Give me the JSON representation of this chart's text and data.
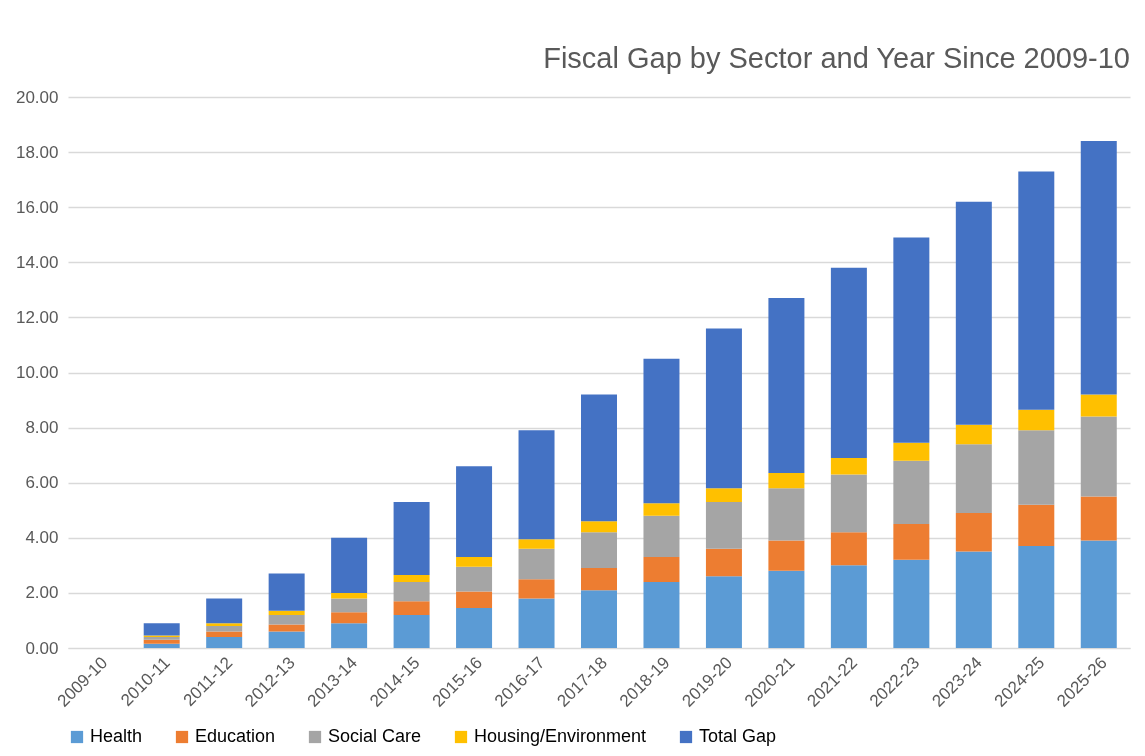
{
  "chart_data": {
    "type": "bar",
    "title": "Fiscal Gap by Sector and Year Since 2009-10",
    "stacked": true,
    "grid": "y",
    "legend": "bottom",
    "categories": [
      "2009-10",
      "2010-11",
      "2011-12",
      "2012-13",
      "2013-14",
      "2014-15",
      "2015-16",
      "2016-17",
      "2017-18",
      "2018-19",
      "2019-20",
      "2020-21",
      "2021-22",
      "2022-23",
      "2023-24",
      "2024-25",
      "2025-26"
    ],
    "series": [
      {
        "name": "Health",
        "color": "#5b9bd5",
        "values": [
          0,
          0.15,
          0.4,
          0.6,
          0.9,
          1.2,
          1.45,
          1.8,
          2.1,
          2.4,
          2.6,
          2.8,
          3.0,
          3.2,
          3.5,
          3.7,
          3.9
        ]
      },
      {
        "name": "Education",
        "color": "#ed7d31",
        "values": [
          0,
          0.15,
          0.2,
          0.25,
          0.4,
          0.5,
          0.6,
          0.7,
          0.8,
          0.9,
          1.0,
          1.1,
          1.2,
          1.3,
          1.4,
          1.5,
          1.6
        ]
      },
      {
        "name": "Social Care",
        "color": "#a5a5a5",
        "values": [
          0,
          0.1,
          0.2,
          0.35,
          0.5,
          0.7,
          0.9,
          1.1,
          1.3,
          1.5,
          1.7,
          1.9,
          2.1,
          2.3,
          2.5,
          2.7,
          2.9
        ]
      },
      {
        "name": "Housing/Environment",
        "color": "#ffc000",
        "values": [
          0,
          0.05,
          0.1,
          0.15,
          0.2,
          0.25,
          0.35,
          0.35,
          0.4,
          0.45,
          0.5,
          0.55,
          0.6,
          0.65,
          0.7,
          0.75,
          0.8
        ]
      },
      {
        "name": "Total Gap",
        "color": "#4472c4",
        "values": [
          0,
          0.45,
          0.9,
          1.35,
          2.0,
          2.65,
          3.3,
          3.95,
          4.6,
          5.25,
          5.8,
          6.35,
          6.9,
          7.45,
          8.1,
          8.65,
          9.2
        ]
      }
    ],
    "ylim": [
      0,
      20
    ],
    "yticks": [
      {
        "value": 0,
        "label": "0.00"
      },
      {
        "value": 2,
        "label": "2.00"
      },
      {
        "value": 4,
        "label": "4.00"
      },
      {
        "value": 6,
        "label": "6.00"
      },
      {
        "value": 8,
        "label": "8.00"
      },
      {
        "value": 10,
        "label": "10.00"
      },
      {
        "value": 12,
        "label": "12.00"
      },
      {
        "value": 14,
        "label": "14.00"
      },
      {
        "value": 16,
        "label": "16.00"
      },
      {
        "value": 18,
        "label": "18.00"
      },
      {
        "value": 20,
        "label": "20.00"
      }
    ]
  }
}
